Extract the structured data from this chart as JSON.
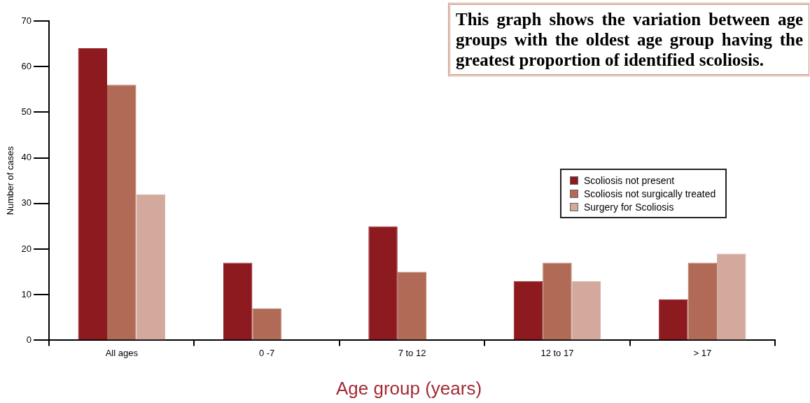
{
  "chart_data": {
    "type": "bar",
    "xlabel": "Age group (years)",
    "ylabel": "Number of cases",
    "categories": [
      "All ages",
      "0 -7",
      "7 to 12",
      "12 to 17",
      "> 17"
    ],
    "series": [
      {
        "name": "Scoliosis not present",
        "color": "#8c1a1e",
        "values": [
          64,
          17,
          25,
          13,
          9
        ]
      },
      {
        "name": "Scoliosis not surgically treated",
        "color": "#b06a55",
        "values": [
          56,
          7,
          15,
          17,
          17
        ]
      },
      {
        "name": "Surgery for Scoliosis",
        "color": "#d4a99d",
        "values": [
          32,
          0,
          0,
          13,
          19
        ]
      }
    ],
    "ylim": [
      0,
      70
    ],
    "yticks": [
      0,
      10,
      20,
      30,
      40,
      50,
      60,
      70
    ],
    "grid": false,
    "legend": "right",
    "annotations": [
      "This graph shows the variation between age groups with the oldest age group having the greatest proportion of identified scoliosis."
    ]
  }
}
